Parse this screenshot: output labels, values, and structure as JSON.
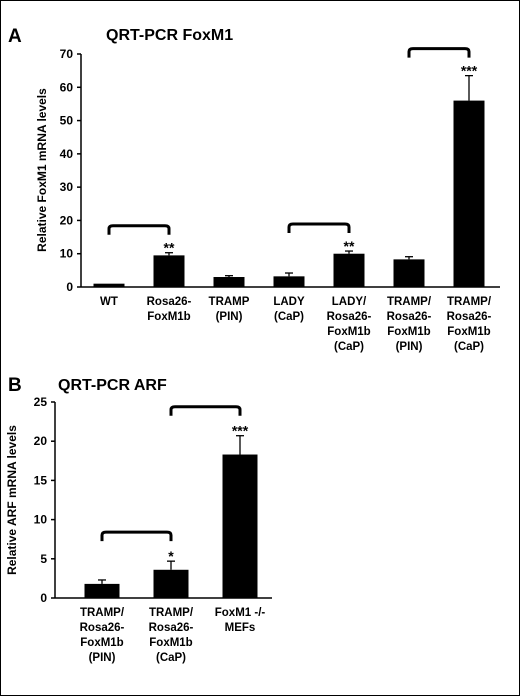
{
  "chart_data": [
    {
      "panel": "A",
      "type": "bar",
      "title": "QRT-PCR FoxM1",
      "ylabel": "Relative FoxM1 mRNA levels",
      "xlabel": "",
      "ylim": [
        0,
        70
      ],
      "yticks": [
        0,
        10,
        20,
        30,
        40,
        50,
        60,
        70
      ],
      "categories": [
        [
          "WT"
        ],
        [
          "Rosa26-",
          "FoxM1b"
        ],
        [
          "TRAMP",
          "(PIN)"
        ],
        [
          "LADY",
          "(CaP)"
        ],
        [
          "LADY/",
          "Rosa26-",
          "FoxM1b",
          "(CaP)"
        ],
        [
          "TRAMP/",
          "Rosa26-",
          "FoxM1b",
          "(PIN)"
        ],
        [
          "TRAMP/",
          "Rosa26-",
          "FoxM1b",
          "(CaP)"
        ]
      ],
      "values": [
        1,
        9.5,
        3,
        3.2,
        10,
        8.3,
        56
      ],
      "errors": [
        0,
        0.8,
        0.4,
        1.0,
        0.8,
        0.8,
        7.5
      ],
      "significance": [
        "",
        "**",
        "",
        "",
        "**",
        "",
        "***"
      ],
      "brackets": [
        [
          0,
          1
        ],
        [
          3,
          4
        ],
        [
          5,
          6
        ]
      ],
      "bar_color": "#000000",
      "grid": false,
      "legend": "none"
    },
    {
      "panel": "B",
      "type": "bar",
      "title": "QRT-PCR ARF",
      "ylabel": "Relative ARF mRNA levels",
      "xlabel": "",
      "ylim": [
        0,
        25
      ],
      "yticks": [
        0,
        5,
        10,
        15,
        20,
        25
      ],
      "categories": [
        [
          "TRAMP/",
          "Rosa26-",
          "FoxM1b",
          "(PIN)"
        ],
        [
          "TRAMP/",
          "Rosa26-",
          "FoxM1b",
          "(CaP)"
        ],
        [
          "FoxM1 -/-",
          "MEFs"
        ]
      ],
      "values": [
        1.8,
        3.6,
        18.3
      ],
      "errors": [
        0.5,
        1.1,
        2.4
      ],
      "significance": [
        "",
        "*",
        "***"
      ],
      "brackets": [
        [
          0,
          1
        ],
        [
          1,
          2
        ]
      ],
      "bar_color": "#000000",
      "grid": false,
      "legend": "none"
    }
  ]
}
